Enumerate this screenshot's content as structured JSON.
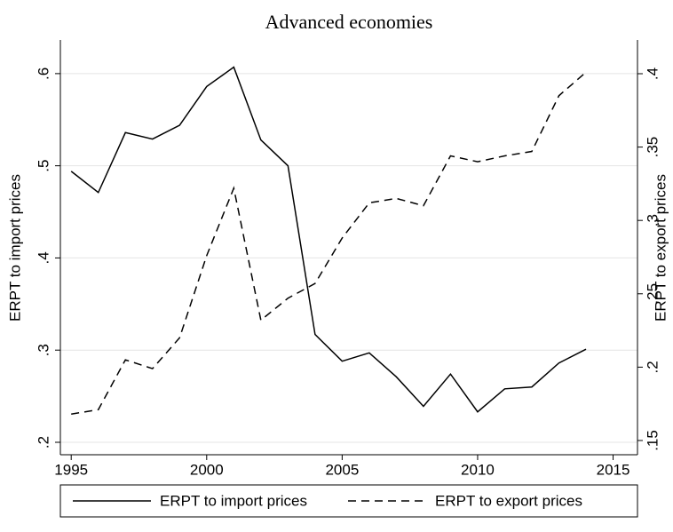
{
  "chart_data": {
    "type": "line",
    "title": "Advanced economies",
    "y_label": "ERPT to import prices",
    "y2_label": "ERPT to export prices",
    "x": [
      1995,
      1996,
      1997,
      1998,
      1999,
      2000,
      2001,
      2002,
      2003,
      2004,
      2005,
      2006,
      2007,
      2008,
      2009,
      2010,
      2011,
      2012,
      2013,
      2014
    ],
    "series": [
      {
        "name": "ERPT to import prices",
        "color": "#000000",
        "dash": "solid",
        "values": [
          0.494,
          0.471,
          0.536,
          0.529,
          0.544,
          0.586,
          0.607,
          0.528,
          0.5,
          0.317,
          0.288,
          0.297,
          0.271,
          0.239,
          0.274,
          0.233,
          0.258,
          0.26,
          0.286,
          0.301
        ]
      },
      {
        "name": "ERPT to export prices",
        "color": "#000000",
        "dash": "dashed",
        "axis": "y2",
        "values": [
          0.168,
          0.171,
          0.205,
          0.199,
          0.22,
          0.276,
          0.322,
          0.232,
          0.247,
          0.257,
          0.288,
          0.312,
          0.315,
          0.31,
          0.344,
          0.34,
          0.344,
          0.347,
          0.385,
          0.401
        ]
      }
    ],
    "xlim": [
      1994.6,
      2015.9
    ],
    "xticks": [
      1995,
      2000,
      2005,
      2010,
      2015
    ],
    "ylim": [
      0.1865,
      0.6365
    ],
    "yticks": [
      {
        "value": 0.2,
        "label": ".2"
      },
      {
        "value": 0.3,
        "label": ".3"
      },
      {
        "value": 0.4,
        "label": ".4"
      },
      {
        "value": 0.5,
        "label": ".5"
      },
      {
        "value": 0.6,
        "label": ".6"
      }
    ],
    "y2lim": [
      0.1403,
      0.423
    ],
    "y2ticks": [
      {
        "value": 0.15,
        "label": ".15"
      },
      {
        "value": 0.2,
        "label": ".2"
      },
      {
        "value": 0.25,
        "label": ".25"
      },
      {
        "value": 0.3,
        "label": ".3"
      },
      {
        "value": 0.35,
        "label": ".35"
      },
      {
        "value": 0.4,
        "label": ".4"
      }
    ],
    "grid": true,
    "legend": "bottom"
  }
}
